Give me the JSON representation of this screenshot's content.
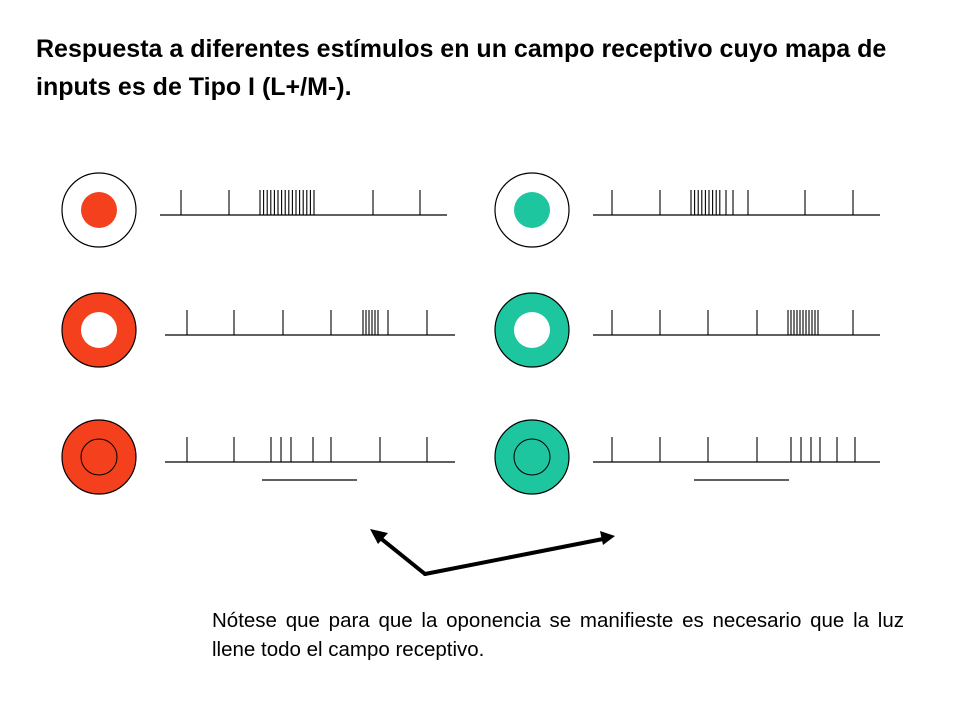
{
  "title": "Respuesta a diferentes estímulos en un campo receptivo cuyo mapa de inputs es de Tipo I (L+/M-).",
  "note": "Nótese que para que la oponencia se manifieste es necesario que la luz llene todo el campo receptivo.",
  "colors": {
    "red_light": "#f4401c",
    "green_light": "#1ec6a0",
    "unlit": "#ffffff",
    "stroke": "#000000"
  },
  "stimuli": [
    {
      "name": "red-center-stimulus",
      "center": "red_light",
      "surround": "unlit",
      "full_field": false
    },
    {
      "name": "green-center-stimulus",
      "center": "green_light",
      "surround": "unlit",
      "full_field": false
    },
    {
      "name": "red-surround-stimulus",
      "center": "unlit",
      "surround": "red_light",
      "full_field": false
    },
    {
      "name": "green-surround-stimulus",
      "center": "unlit",
      "surround": "green_light",
      "full_field": false
    },
    {
      "name": "red-full-field-stimulus",
      "center": "red_light",
      "surround": "red_light",
      "full_field": true
    },
    {
      "name": "green-full-field-stimulus",
      "center": "green_light",
      "surround": "green_light",
      "full_field": true
    }
  ]
}
